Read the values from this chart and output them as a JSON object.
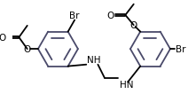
{
  "bg_color": "#ffffff",
  "bond_color": "#000000",
  "ring_color": "#4a4a6a",
  "text_color": "#000000",
  "lw": 1.3,
  "dbo": 0.012,
  "fs": 7.5,
  "fig_w": 2.21,
  "fig_h": 1.16,
  "dpi": 100,
  "xlim": [
    0,
    221
  ],
  "ylim": [
    0,
    116
  ]
}
